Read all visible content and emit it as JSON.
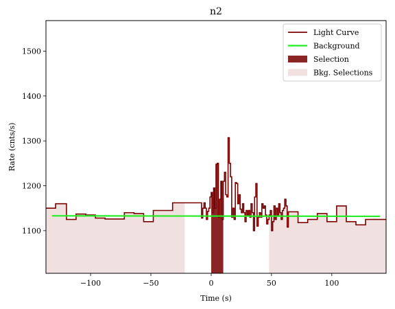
{
  "chart_data": {
    "type": "line",
    "title": "n2",
    "xlabel": "Time (s)",
    "ylabel": "Rate (cnts/s)",
    "xlim": [
      -137,
      145
    ],
    "ylim": [
      1005,
      1568
    ],
    "xticks": [
      -100,
      -50,
      0,
      50,
      100
    ],
    "yticks": [
      1100,
      1200,
      1300,
      1400,
      1500
    ],
    "grid": false,
    "legend_position": "top-right",
    "legend": [
      {
        "label": "Light Curve",
        "kind": "line",
        "color": "#7a0000"
      },
      {
        "label": "Background",
        "kind": "line",
        "color": "#22ee22"
      },
      {
        "label": "Selection",
        "kind": "patch",
        "color": "#8b2525"
      },
      {
        "label": "Bkg. Selections",
        "kind": "patch",
        "color": "#f0e0e0"
      }
    ],
    "series": [
      {
        "name": "Light Curve",
        "color": "#7a0000",
        "step": true,
        "x": [
          -137,
          -129,
          -120,
          -112,
          -104,
          -96,
          -88,
          -80,
          -72,
          -64,
          -56,
          -48,
          -40,
          -32,
          -24,
          -8,
          -7,
          -6,
          -5,
          -4,
          -3,
          -2,
          -1,
          0,
          1,
          2,
          3,
          4,
          5,
          6,
          7,
          8,
          9,
          10,
          11,
          12,
          13,
          14,
          15,
          16,
          17,
          18,
          19,
          20,
          21,
          22,
          23,
          24,
          25,
          26,
          27,
          28,
          29,
          30,
          31,
          32,
          33,
          34,
          35,
          36,
          37,
          38,
          39,
          40,
          41,
          42,
          43,
          44,
          45,
          46,
          47,
          48,
          49,
          50,
          51,
          52,
          53,
          54,
          55,
          56,
          57,
          58,
          59,
          60,
          61,
          62,
          63,
          64,
          72,
          80,
          88,
          96,
          104,
          112,
          120,
          128,
          136,
          145
        ],
        "y": [
          1150,
          1160,
          1125,
          1137,
          1135,
          1128,
          1126,
          1126,
          1140,
          1138,
          1120,
          1145,
          1145,
          1162,
          1162,
          1128,
          1150,
          1162,
          1150,
          1125,
          1143,
          1150,
          1175,
          1185,
          1140,
          1195,
          1150,
          1248,
          1250,
          1130,
          1170,
          1210,
          1125,
          1210,
          1230,
          1180,
          1175,
          1307,
          1250,
          1220,
          1130,
          1150,
          1125,
          1207,
          1205,
          1160,
          1180,
          1148,
          1140,
          1160,
          1140,
          1120,
          1145,
          1135,
          1145,
          1130,
          1160,
          1140,
          1100,
          1175,
          1205,
          1110,
          1130,
          1140,
          1130,
          1160,
          1150,
          1155,
          1135,
          1115,
          1125,
          1135,
          1145,
          1100,
          1120,
          1155,
          1125,
          1150,
          1135,
          1160,
          1140,
          1125,
          1145,
          1150,
          1170,
          1155,
          1108,
          1142,
          1118,
          1125,
          1138,
          1120,
          1155,
          1120,
          1113,
          1125,
          1125,
          1125
        ]
      },
      {
        "name": "Background",
        "color": "#22ee22",
        "x": [
          -132,
          140
        ],
        "y": [
          1133,
          1132
        ]
      }
    ],
    "selection": {
      "x0": 0,
      "x1": 10
    },
    "bkg_selections": [
      [
        -137,
        -22
      ],
      [
        48,
        145
      ]
    ]
  }
}
